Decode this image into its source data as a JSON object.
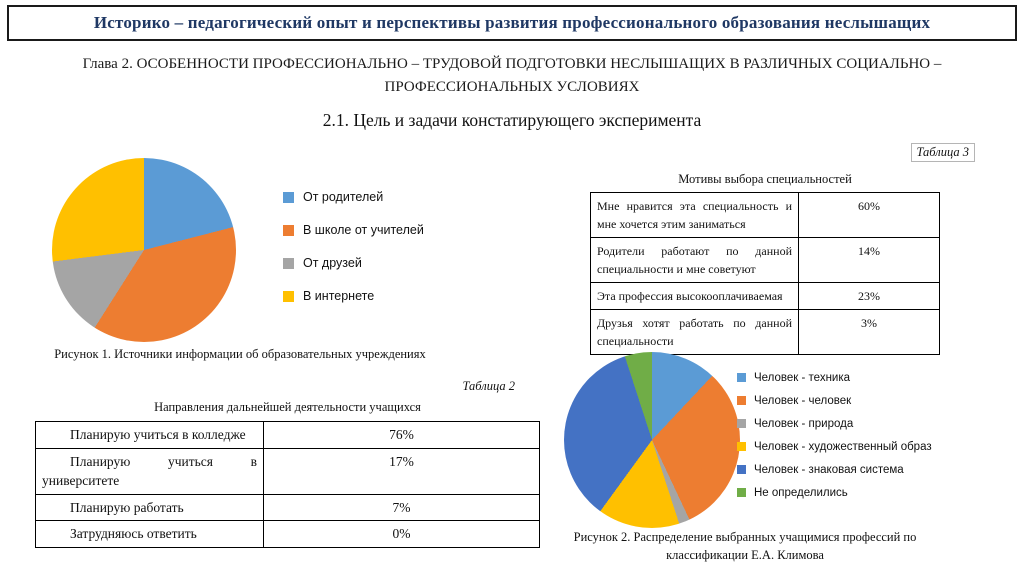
{
  "slide": {
    "title": "Историко – педагогический опыт и перспективы развития профессионального образования неслышащих",
    "chapter_heading": "Глава 2. ОСОБЕННОСТИ ПРОФЕССИОНАЛЬНО – ТРУДОВОЙ ПОДГОТОВКИ НЕСЛЫШАЩИХ В РАЗЛИЧНЫХ СОЦИАЛЬНО – ПРОФЕССИОНАЛЬНЫХ УСЛОВИЯХ",
    "section_heading": "2.1. Цель и задачи констатирующего эксперимента"
  },
  "colors": {
    "title_text": "#1f3864",
    "palette": [
      "#5b9bd5",
      "#ed7d31",
      "#a5a5a5",
      "#ffc000",
      "#4472c4",
      "#70ad47"
    ]
  },
  "chart_data": [
    {
      "type": "pie",
      "name": "figure1",
      "caption": "Рисунок 1. Источники информации об образовательных учреждениях",
      "labels": [
        "От родителей",
        "В школе от учителей",
        "От друзей",
        "В интернете"
      ],
      "values": [
        21,
        38,
        14,
        27
      ],
      "units": "%",
      "colors": [
        "#5b9bd5",
        "#ed7d31",
        "#a5a5a5",
        "#ffc000"
      ],
      "legend_position": "right"
    },
    {
      "type": "table",
      "name": "table3",
      "label": "Таблица 3",
      "title": "Мотивы выбора специальностей",
      "rows": [
        {
          "label": "Мне нравится эта специальность и мне хочется этим заниматься",
          "value": "60%"
        },
        {
          "label": "Родители работают по данной специальности и мне советуют",
          "value": "14%"
        },
        {
          "label": "Эта профессия высокооплачиваемая",
          "value": "23%"
        },
        {
          "label": "Друзья хотят работать по данной специальности",
          "value": "3%"
        }
      ]
    },
    {
      "type": "table",
      "name": "table2",
      "label": "Таблица 2",
      "title": "Направления дальнейшей деятельности учащихся",
      "rows": [
        {
          "label": "Планирую учиться в колледже",
          "value": "76%"
        },
        {
          "label": "Планирую учиться в университете",
          "value": "17%"
        },
        {
          "label": "Планирую работать",
          "value": "7%"
        },
        {
          "label": "Затрудняюсь ответить",
          "value": "0%"
        }
      ]
    },
    {
      "type": "pie",
      "name": "figure2",
      "caption": "Рисунок 2. Распределение выбранных учащимися профессий по классификации Е.А. Климова",
      "labels": [
        "Человек - техника",
        "Человек - человек",
        "Человек - природа",
        "Человек - художественный образ",
        "Человек - знаковая система",
        "Не определились"
      ],
      "values": [
        12,
        31,
        2,
        15,
        35,
        5
      ],
      "units": "%",
      "colors": [
        "#5b9bd5",
        "#ed7d31",
        "#a5a5a5",
        "#ffc000",
        "#4472c4",
        "#70ad47"
      ],
      "legend_position": "right"
    }
  ]
}
